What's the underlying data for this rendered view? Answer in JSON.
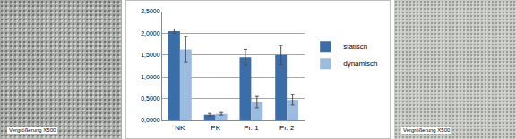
{
  "chart_data": {
    "type": "bar",
    "categories": [
      "NK",
      "PK",
      "Pr. 1",
      "Pr. 2"
    ],
    "series": [
      {
        "name": "statisch",
        "color": "#3b6ea8",
        "values": [
          2.05,
          0.13,
          1.45,
          1.5
        ],
        "errors": [
          0.05,
          0.03,
          0.18,
          0.22
        ]
      },
      {
        "name": "dynamisch",
        "color": "#9bbbe0",
        "values": [
          1.63,
          0.15,
          0.42,
          0.47
        ],
        "errors": [
          0.3,
          0.03,
          0.13,
          0.12
        ]
      }
    ],
    "ylim": [
      0,
      2.5
    ],
    "yticks": [
      {
        "value": 0,
        "label": "0,0000"
      },
      {
        "value": 0.5,
        "label": "0,5000"
      },
      {
        "value": 1,
        "label": "1,0000"
      },
      {
        "value": 1.5,
        "label": "1,5000"
      },
      {
        "value": 2,
        "label": "2,0000"
      },
      {
        "value": 2.5,
        "label": "2,5000"
      }
    ],
    "grid": true,
    "legend": "right"
  },
  "images": [
    {
      "side": "left",
      "caption": "Vergrößerung X500"
    },
    {
      "side": "right",
      "caption": "Vergrößerung X500"
    }
  ]
}
